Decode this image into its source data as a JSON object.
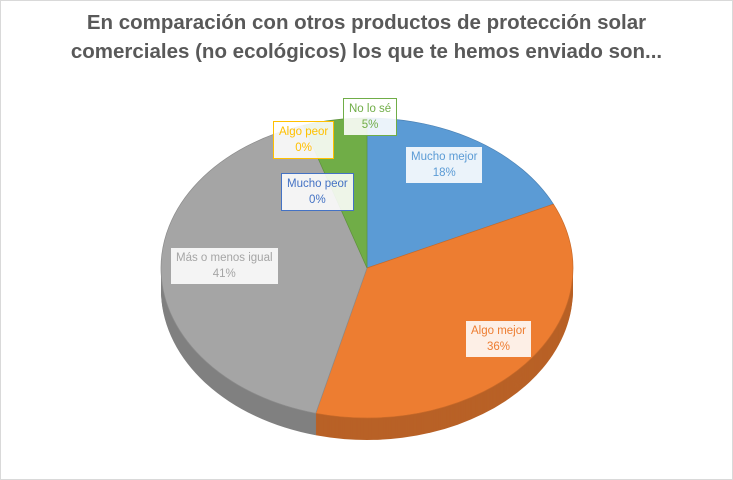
{
  "chart_data": {
    "type": "pie",
    "style": "3d",
    "title": "En comparación con otros productos de protección solar comerciales (no ecológicos) los que te hemos enviado son...",
    "slices": [
      {
        "label": "Mucho mejor",
        "value": 18,
        "display": "18%",
        "color": "#5B9BD5"
      },
      {
        "label": "Algo mejor",
        "value": 36,
        "display": "36%",
        "color": "#ED7D31"
      },
      {
        "label": "Más o menos igual",
        "value": 41,
        "display": "41%",
        "color": "#A5A5A5"
      },
      {
        "label": "Mucho peor",
        "value": 0,
        "display": "0%",
        "color": "#4472C4"
      },
      {
        "label": "Algo peor",
        "value": 0,
        "display": "0%",
        "color": "#FFC000"
      },
      {
        "label": "No lo sé",
        "value": 5,
        "display": "5%",
        "color": "#70AD47"
      }
    ],
    "legend": "none"
  }
}
